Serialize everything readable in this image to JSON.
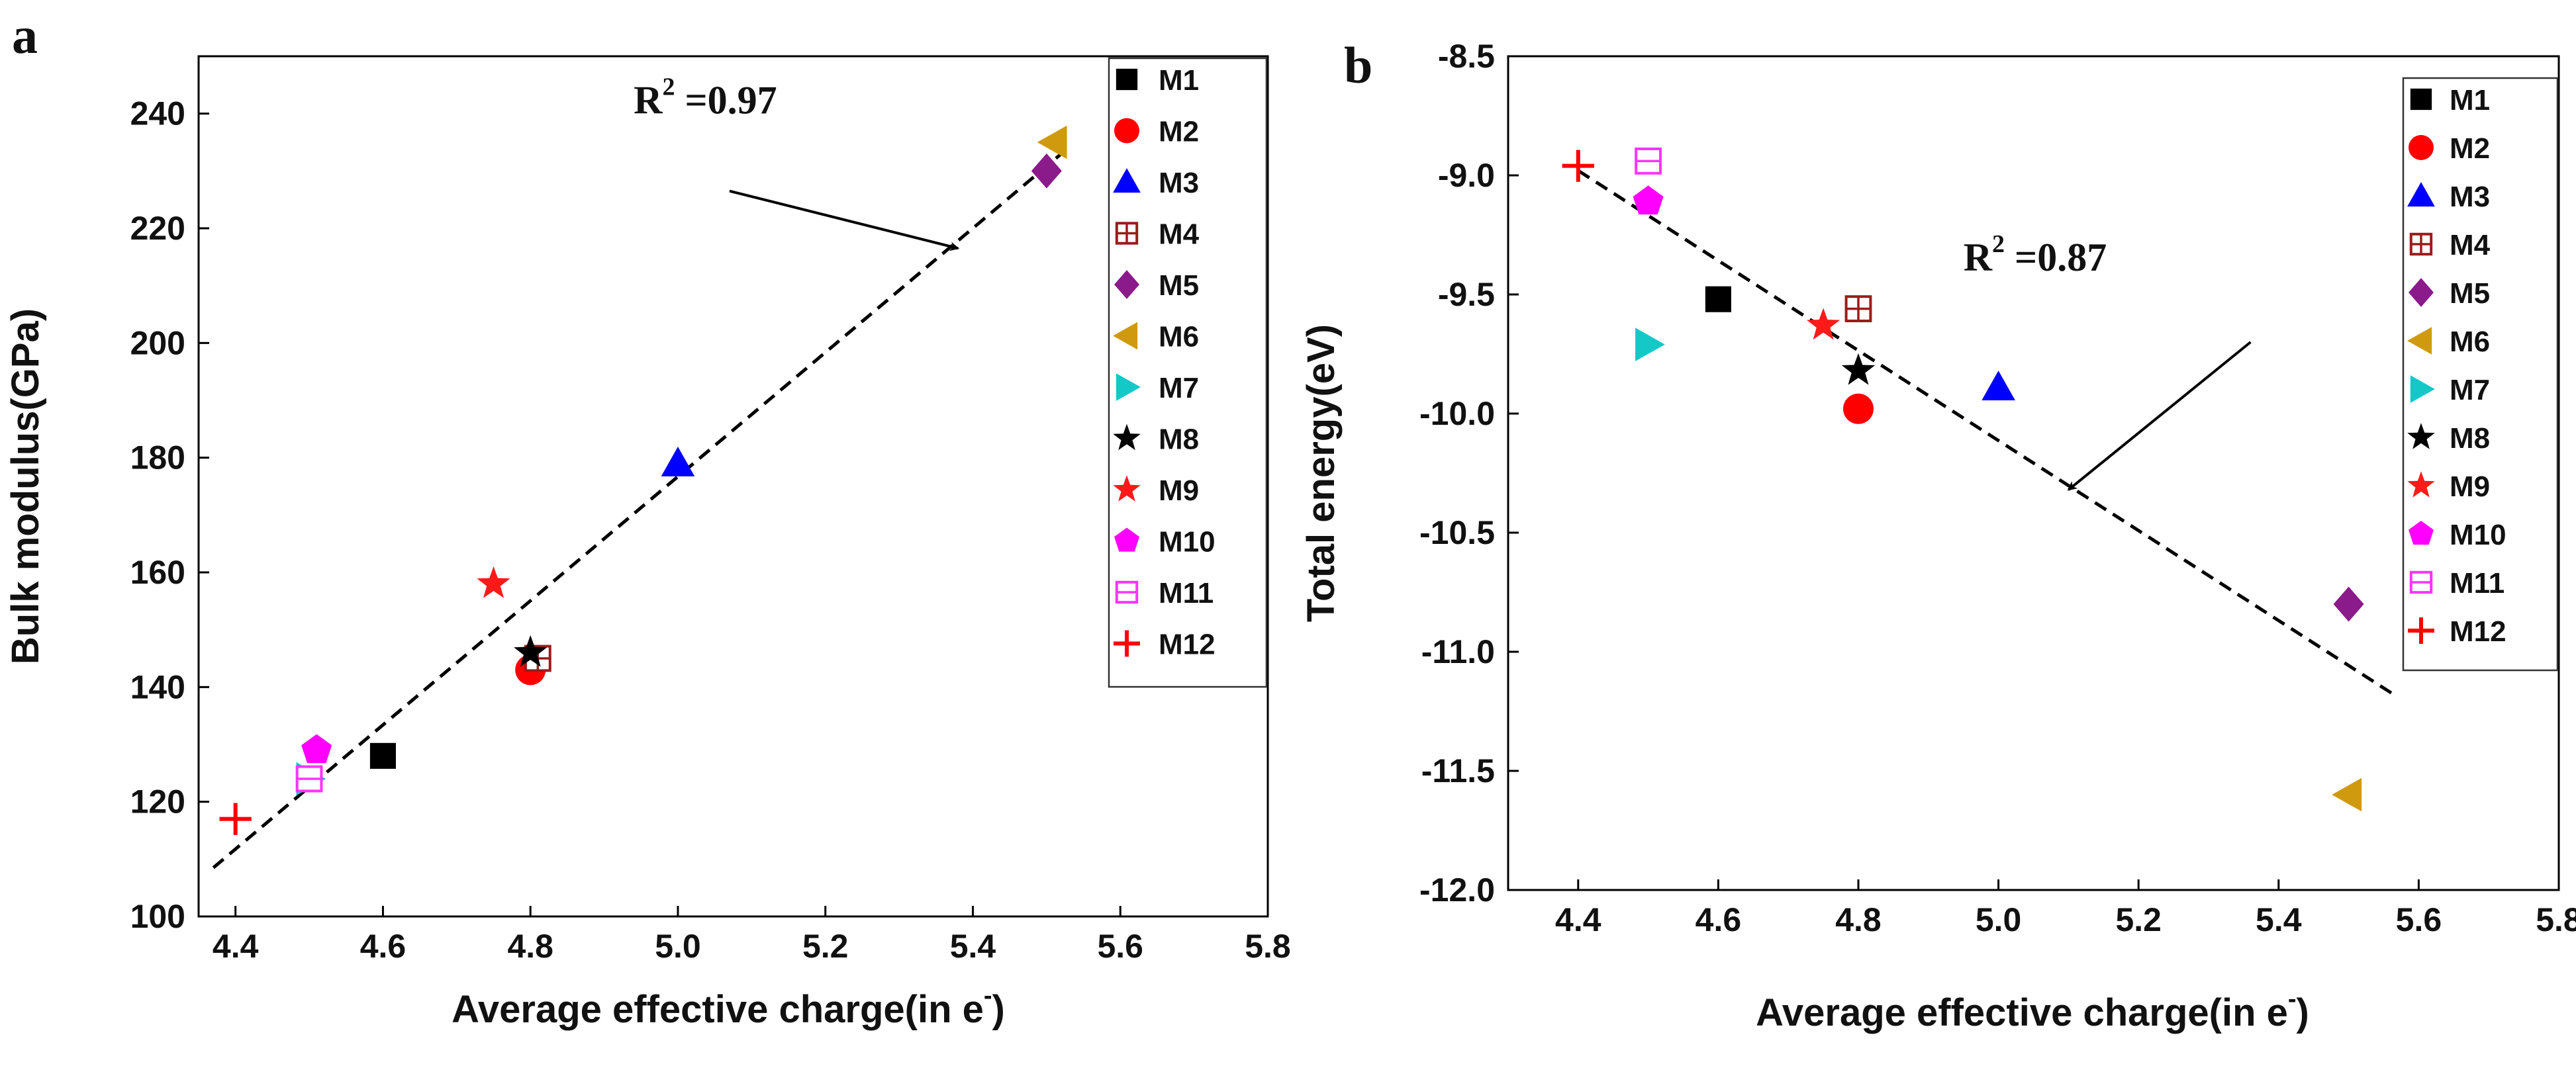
{
  "legend_items": [
    {
      "id": "M1",
      "shape": "square",
      "color": "#000000"
    },
    {
      "id": "M2",
      "shape": "circle",
      "color": "#ff0000"
    },
    {
      "id": "M3",
      "shape": "triangle-up",
      "color": "#0000ff"
    },
    {
      "id": "M4",
      "shape": "square-cross",
      "color": "#9a1c1c"
    },
    {
      "id": "M5",
      "shape": "diamond",
      "color": "#8b1a8b"
    },
    {
      "id": "M6",
      "shape": "triangle-left",
      "color": "#d09a0f"
    },
    {
      "id": "M7",
      "shape": "triangle-right",
      "color": "#14c8c8"
    },
    {
      "id": "M8",
      "shape": "star",
      "color": "#000000"
    },
    {
      "id": "M9",
      "shape": "star",
      "color": "#ff1a1a"
    },
    {
      "id": "M10",
      "shape": "pentagon",
      "color": "#ff00ff"
    },
    {
      "id": "M11",
      "shape": "square-line",
      "color": "#ff33ff"
    },
    {
      "id": "M12",
      "shape": "plus",
      "color": "#ff0000"
    }
  ],
  "chart_data": [
    {
      "panel": "a",
      "type": "scatter",
      "xlabel": "Average effective charge(in e",
      "xlabel_sup": "-",
      "xlabel_close": ")",
      "ylabel": "Bulk modulus(GPa)",
      "xlim": [
        4.35,
        5.8
      ],
      "ylim": [
        100,
        250
      ],
      "xticks": [
        4.4,
        4.6,
        4.8,
        5.0,
        5.2,
        5.4,
        5.6,
        5.8
      ],
      "xtick_labels": [
        "4.4",
        "4.6",
        "4.8",
        "5.0",
        "5.2",
        "5.4",
        "5.6",
        "5.8"
      ],
      "yticks": [
        100,
        120,
        140,
        160,
        180,
        200,
        220,
        240
      ],
      "ytick_labels": [
        "100",
        "120",
        "140",
        "160",
        "180",
        "200",
        "220",
        "240"
      ],
      "points": [
        {
          "name": "M1",
          "x": 4.6,
          "y": 128
        },
        {
          "name": "M2",
          "x": 4.8,
          "y": 143
        },
        {
          "name": "M3",
          "x": 5.0,
          "y": 179
        },
        {
          "name": "M4",
          "x": 4.81,
          "y": 145
        },
        {
          "name": "M5",
          "x": 5.5,
          "y": 230
        },
        {
          "name": "M6",
          "x": 5.51,
          "y": 235
        },
        {
          "name": "M7",
          "x": 4.5,
          "y": 124
        },
        {
          "name": "M8",
          "x": 4.8,
          "y": 146
        },
        {
          "name": "M9",
          "x": 4.75,
          "y": 158
        },
        {
          "name": "M10",
          "x": 4.51,
          "y": 129
        },
        {
          "name": "M11",
          "x": 4.5,
          "y": 124
        },
        {
          "name": "M12",
          "x": 4.4,
          "y": 117
        }
      ],
      "fit_line": {
        "x": [
          4.37,
          5.52
        ],
        "y": [
          108.5,
          233
        ]
      },
      "r2": {
        "label": "R",
        "sup": "2",
        "value": " =0.97",
        "text_at": {
          "x": 4.94,
          "y": 240
        },
        "arrow_from": {
          "x": 5.07,
          "y": 226.5
        },
        "arrow_to": {
          "x": 5.38,
          "y": 216.5
        }
      },
      "legend_position": "top-right"
    },
    {
      "panel": "b",
      "type": "scatter",
      "xlabel": "Average effective charge(in e",
      "xlabel_sup": "-",
      "xlabel_close": ")",
      "ylabel": "Total energy(eV)",
      "xlim": [
        4.3,
        5.8
      ],
      "ylim": [
        -12.0,
        -8.5
      ],
      "xticks": [
        4.4,
        4.6,
        4.8,
        5.0,
        5.2,
        5.4,
        5.6,
        5.8
      ],
      "xtick_labels": [
        "4.4",
        "4.6",
        "4.8",
        "5.0",
        "5.2",
        "5.4",
        "5.6",
        "5.8"
      ],
      "yticks": [
        -12.0,
        -11.5,
        -11.0,
        -10.5,
        -10.0,
        -9.5,
        -9.0,
        -8.5
      ],
      "ytick_labels": [
        "-12.0",
        "-11.5",
        "-11.0",
        "-10.5",
        "-10.0",
        "-9.5",
        "-9.0",
        "-8.5"
      ],
      "points": [
        {
          "name": "M1",
          "x": 4.6,
          "y": -9.52
        },
        {
          "name": "M2",
          "x": 4.8,
          "y": -9.98
        },
        {
          "name": "M3",
          "x": 5.0,
          "y": -9.89
        },
        {
          "name": "M4",
          "x": 4.8,
          "y": -9.56
        },
        {
          "name": "M5",
          "x": 5.5,
          "y": -10.8
        },
        {
          "name": "M6",
          "x": 5.5,
          "y": -11.6
        },
        {
          "name": "M7",
          "x": 4.5,
          "y": -9.71
        },
        {
          "name": "M8",
          "x": 4.8,
          "y": -9.82
        },
        {
          "name": "M9",
          "x": 4.75,
          "y": -9.63
        },
        {
          "name": "M10",
          "x": 4.5,
          "y": -9.11
        },
        {
          "name": "M11",
          "x": 4.5,
          "y": -8.94
        },
        {
          "name": "M12",
          "x": 4.4,
          "y": -8.96
        }
      ],
      "fit_line": {
        "x": [
          4.4,
          5.57
        ],
        "y": [
          -8.98,
          -11.19
        ]
      },
      "r2": {
        "label": "R",
        "sup": "2",
        "value": " =0.87",
        "text_at": {
          "x": 4.95,
          "y": -9.4
        },
        "arrow_from": {
          "x": 5.36,
          "y": -9.7
        },
        "arrow_to": {
          "x": 5.1,
          "y": -10.32
        }
      },
      "legend_position": "top-right"
    }
  ]
}
